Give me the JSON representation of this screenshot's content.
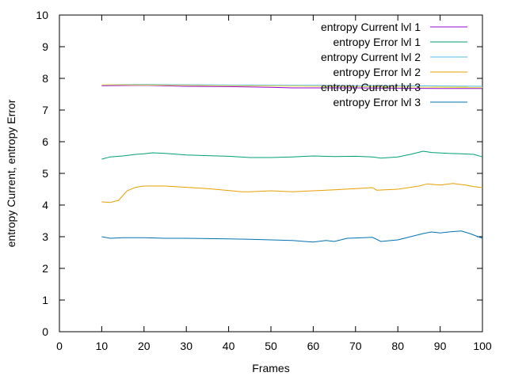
{
  "chart_data": {
    "type": "line",
    "title": "",
    "xlabel": "Frames",
    "ylabel": "entropy Current, entropy Error",
    "xlim": [
      0,
      100
    ],
    "ylim": [
      0,
      10
    ],
    "xticks": [
      0,
      10,
      20,
      30,
      40,
      50,
      60,
      70,
      80,
      90,
      100
    ],
    "yticks": [
      0,
      1,
      2,
      3,
      4,
      5,
      6,
      7,
      8,
      9,
      10
    ],
    "grid": false,
    "legend_position": "top-right",
    "series": [
      {
        "name": "entropy Current lvl 1",
        "color": "#9400d3",
        "points": [
          [
            10,
            7.77
          ],
          [
            20,
            7.78
          ],
          [
            30,
            7.75
          ],
          [
            40,
            7.74
          ],
          [
            50,
            7.72
          ],
          [
            55,
            7.7
          ],
          [
            60,
            7.7
          ],
          [
            70,
            7.7
          ],
          [
            80,
            7.69
          ],
          [
            90,
            7.68
          ],
          [
            100,
            7.68
          ]
        ]
      },
      {
        "name": "entropy Error lvl 1",
        "color": "#009e73",
        "points": [
          [
            10,
            5.45
          ],
          [
            12,
            5.52
          ],
          [
            15,
            5.55
          ],
          [
            18,
            5.6
          ],
          [
            20,
            5.62
          ],
          [
            22,
            5.65
          ],
          [
            25,
            5.63
          ],
          [
            30,
            5.58
          ],
          [
            35,
            5.56
          ],
          [
            40,
            5.54
          ],
          [
            45,
            5.5
          ],
          [
            50,
            5.5
          ],
          [
            55,
            5.52
          ],
          [
            60,
            5.55
          ],
          [
            65,
            5.53
          ],
          [
            70,
            5.54
          ],
          [
            74,
            5.52
          ],
          [
            76,
            5.48
          ],
          [
            80,
            5.52
          ],
          [
            83,
            5.6
          ],
          [
            86,
            5.7
          ],
          [
            88,
            5.66
          ],
          [
            92,
            5.63
          ],
          [
            95,
            5.62
          ],
          [
            98,
            5.6
          ],
          [
            100,
            5.52
          ]
        ]
      },
      {
        "name": "entropy Current lvl 2",
        "color": "#56b4e9",
        "points": [
          [
            10,
            7.8
          ],
          [
            20,
            7.81
          ],
          [
            30,
            7.8
          ],
          [
            40,
            7.79
          ],
          [
            50,
            7.78
          ],
          [
            60,
            7.78
          ],
          [
            70,
            7.77
          ],
          [
            80,
            7.77
          ],
          [
            90,
            7.76
          ],
          [
            100,
            7.75
          ]
        ]
      },
      {
        "name": "entropy Error lvl 2",
        "color": "#e69f00",
        "points": [
          [
            10,
            4.1
          ],
          [
            12,
            4.08
          ],
          [
            14,
            4.15
          ],
          [
            15,
            4.3
          ],
          [
            16,
            4.45
          ],
          [
            18,
            4.56
          ],
          [
            20,
            4.6
          ],
          [
            25,
            4.6
          ],
          [
            30,
            4.56
          ],
          [
            35,
            4.52
          ],
          [
            40,
            4.46
          ],
          [
            43,
            4.42
          ],
          [
            45,
            4.42
          ],
          [
            50,
            4.45
          ],
          [
            55,
            4.42
          ],
          [
            60,
            4.45
          ],
          [
            65,
            4.48
          ],
          [
            70,
            4.52
          ],
          [
            74,
            4.55
          ],
          [
            75,
            4.47
          ],
          [
            80,
            4.5
          ],
          [
            85,
            4.6
          ],
          [
            87,
            4.67
          ],
          [
            90,
            4.63
          ],
          [
            93,
            4.68
          ],
          [
            96,
            4.63
          ],
          [
            98,
            4.58
          ],
          [
            100,
            4.55
          ]
        ]
      },
      {
        "name": "entropy Current lvl 3",
        "color": "#f0e442",
        "points": [
          [
            10,
            7.8
          ],
          [
            20,
            7.79
          ],
          [
            30,
            7.78
          ],
          [
            40,
            7.77
          ],
          [
            50,
            7.76
          ],
          [
            60,
            7.75
          ],
          [
            70,
            7.74
          ],
          [
            80,
            7.73
          ],
          [
            90,
            7.72
          ],
          [
            100,
            7.71
          ]
        ]
      },
      {
        "name": "entropy Error lvl 3",
        "color": "#0072b2",
        "points": [
          [
            10,
            3.0
          ],
          [
            12,
            2.95
          ],
          [
            15,
            2.97
          ],
          [
            20,
            2.97
          ],
          [
            25,
            2.95
          ],
          [
            30,
            2.95
          ],
          [
            35,
            2.94
          ],
          [
            40,
            2.93
          ],
          [
            45,
            2.92
          ],
          [
            50,
            2.9
          ],
          [
            55,
            2.88
          ],
          [
            58,
            2.85
          ],
          [
            60,
            2.83
          ],
          [
            63,
            2.88
          ],
          [
            65,
            2.85
          ],
          [
            68,
            2.95
          ],
          [
            70,
            2.96
          ],
          [
            74,
            2.98
          ],
          [
            76,
            2.85
          ],
          [
            80,
            2.9
          ],
          [
            83,
            3.0
          ],
          [
            86,
            3.1
          ],
          [
            88,
            3.15
          ],
          [
            90,
            3.12
          ],
          [
            92,
            3.15
          ],
          [
            95,
            3.18
          ],
          [
            97,
            3.1
          ],
          [
            100,
            2.95
          ]
        ]
      }
    ]
  }
}
